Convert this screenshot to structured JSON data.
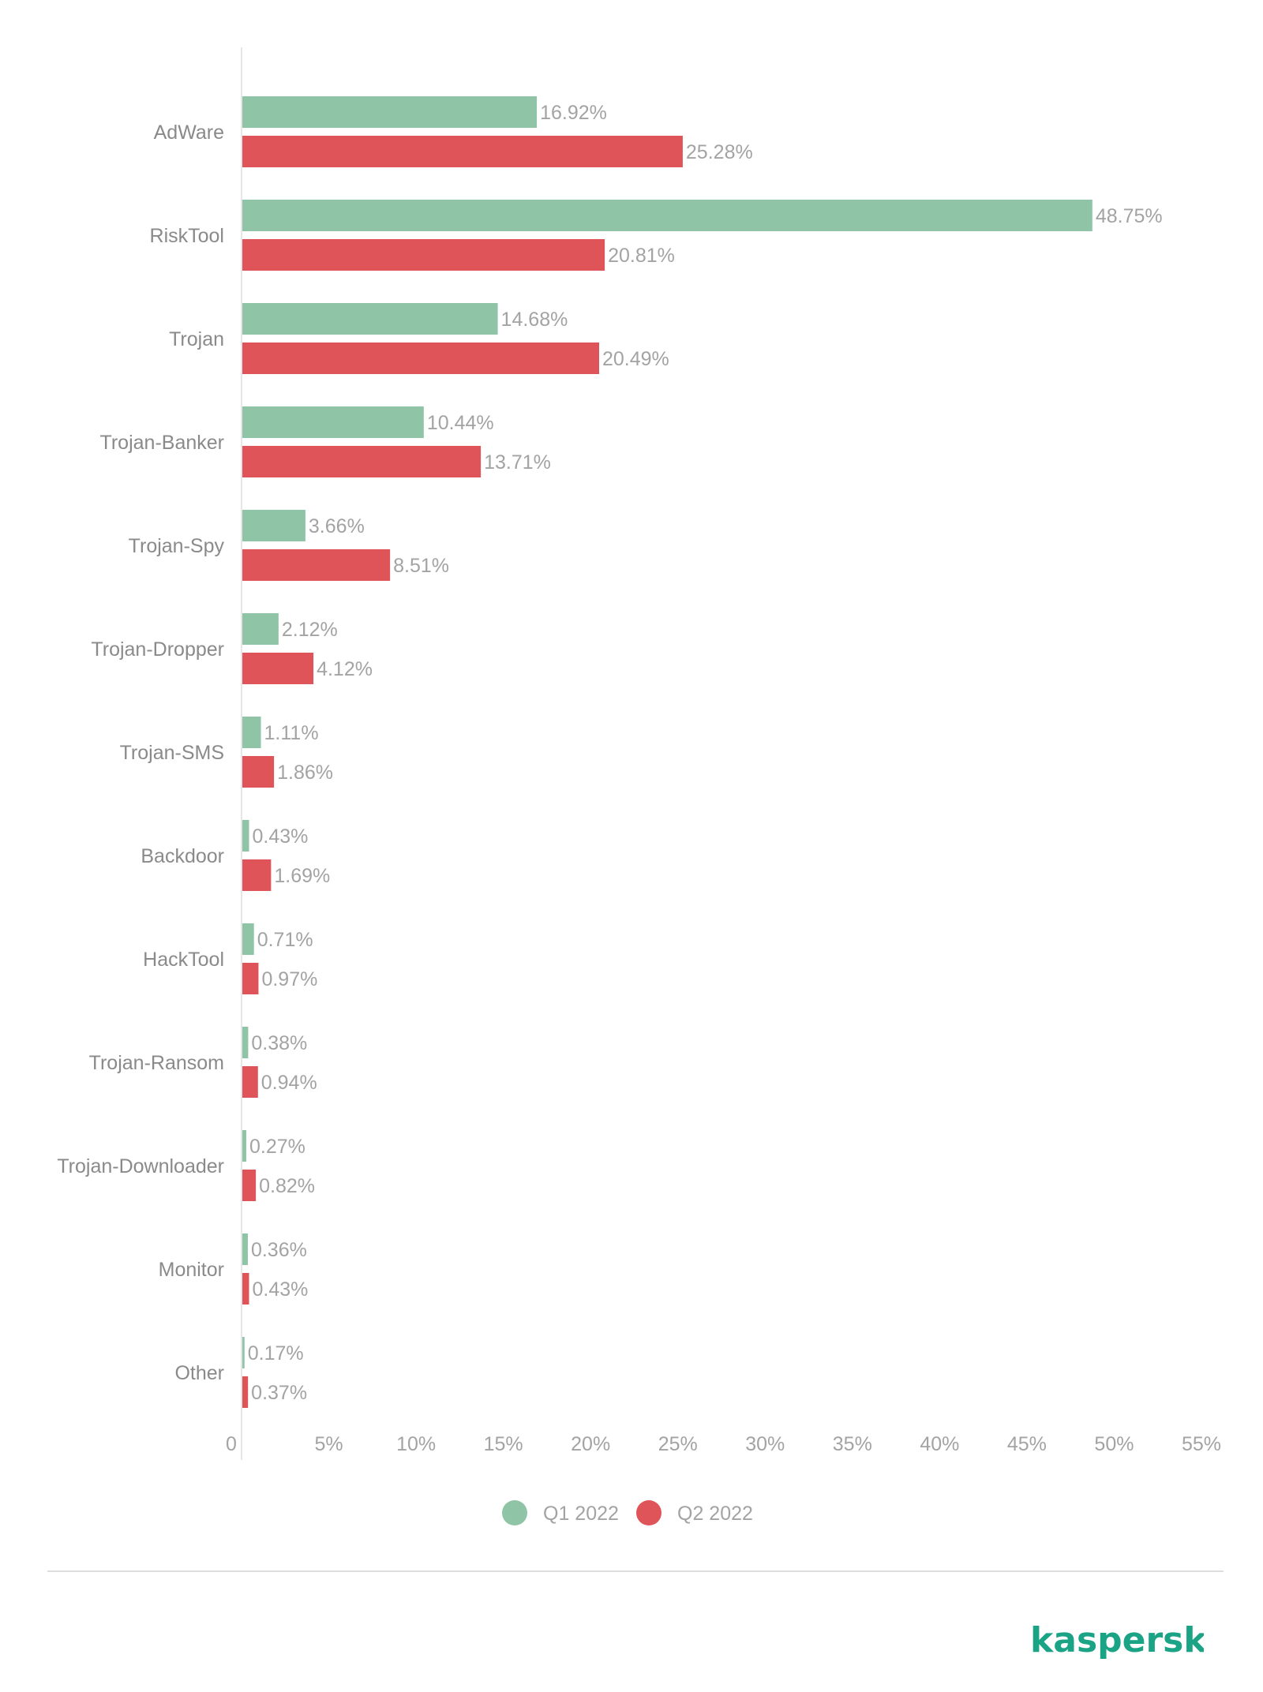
{
  "brand": "kaspersky",
  "colors": {
    "q1": "#8fc4a6",
    "q2": "#de5458",
    "text": "#a3a3a3",
    "brand": "#1aa385"
  },
  "chart_data": {
    "type": "bar",
    "orientation": "horizontal",
    "categories": [
      "AdWare",
      "RiskTool",
      "Trojan",
      "Trojan-Banker",
      "Trojan-Spy",
      "Trojan-Dropper",
      "Trojan-SMS",
      "Backdoor",
      "HackTool",
      "Trojan-Ransom",
      "Trojan-Downloader",
      "Monitor",
      "Other"
    ],
    "series": [
      {
        "name": "Q1 2022",
        "color": "#8fc4a6",
        "values": [
          16.92,
          48.75,
          14.68,
          10.44,
          3.66,
          2.12,
          1.11,
          0.43,
          0.71,
          0.38,
          0.27,
          0.36,
          0.17
        ],
        "labels": [
          "16.92%",
          "48.75%",
          "14.68%",
          "10.44%",
          "3.66%",
          "2.12%",
          "1.11%",
          "0.43%",
          "0.71%",
          "0.38%",
          "0.27%",
          "0.36%",
          "0.17%"
        ]
      },
      {
        "name": "Q2 2022",
        "color": "#de5458",
        "values": [
          25.28,
          20.81,
          20.49,
          13.71,
          8.51,
          4.12,
          1.86,
          1.69,
          0.97,
          0.94,
          0.82,
          0.43,
          0.37
        ],
        "labels": [
          "25.28%",
          "20.81%",
          "20.49%",
          "13.71%",
          "8.51%",
          "4.12%",
          "1.86%",
          "1.69%",
          "0.97%",
          "0.94%",
          "0.82%",
          "0.43%",
          "0.37%"
        ]
      }
    ],
    "xlim": [
      0,
      55
    ],
    "xticks": [
      0,
      5,
      10,
      15,
      20,
      25,
      30,
      35,
      40,
      45,
      50,
      55
    ],
    "xtick_labels": [
      "0",
      "5%",
      "10%",
      "15%",
      "20%",
      "25%",
      "30%",
      "35%",
      "40%",
      "45%",
      "50%",
      "55%"
    ],
    "legend": {
      "placement": "bottom",
      "items": [
        "Q1 2022",
        "Q2 2022"
      ]
    },
    "grid": false
  }
}
